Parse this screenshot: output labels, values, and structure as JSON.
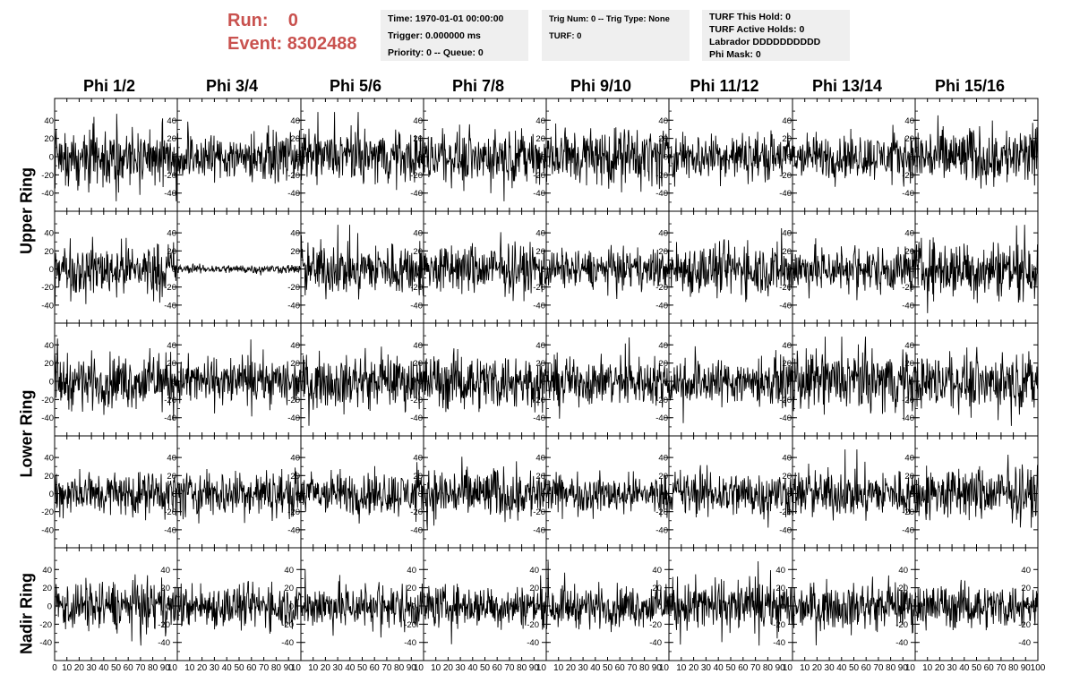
{
  "header": {
    "run_label": "Run:",
    "run_value": "0",
    "event_label": "Event:",
    "event_value": "8302488"
  },
  "info_time": {
    "time": "Time: 1970-01-01 00:00:00",
    "trigger": "Trigger: 0.000000 ms",
    "priority": "Priority: 0 -- Queue: 0"
  },
  "info_trig": {
    "trig": "Trig Num: 0 -- Trig Type: None",
    "turf": "TURF: 0"
  },
  "info_turf": {
    "this_hold": "TURF This Hold: 0",
    "active_holds": "TURF Active Holds: 0",
    "labrador": "Labrador DDDDDDDDDD",
    "phi_mask": "Phi Mask: 0"
  },
  "columns": [
    "Phi 1/2",
    "Phi 3/4",
    "Phi 5/6",
    "Phi 7/8",
    "Phi 9/10",
    "Phi 11/12",
    "Phi 13/14",
    "Phi 15/16"
  ],
  "rings": [
    {
      "label": "Upper Ring",
      "rows": [
        0,
        1
      ]
    },
    {
      "label": "Lower Ring",
      "rows": [
        2,
        3
      ]
    },
    {
      "label": "Nadir Ring",
      "rows": [
        4
      ]
    }
  ],
  "chart_data": {
    "type": "line",
    "grid_rows": 5,
    "grid_cols": 8,
    "xlim": [
      0,
      100
    ],
    "ylim": [
      -55,
      55
    ],
    "x_ticks": [
      0,
      10,
      20,
      30,
      40,
      50,
      60,
      70,
      80,
      90,
      100
    ],
    "x_tick_labels_bottom": [
      "0",
      "10",
      "20",
      "30",
      "40",
      "50",
      "60",
      "70",
      "80",
      "90",
      "10",
      "10",
      "20",
      "30",
      "40",
      "50",
      "60",
      "70",
      "80",
      "90",
      "10",
      "10",
      "20",
      "30",
      "40",
      "50",
      "60",
      "70",
      "80",
      "90",
      "10",
      "10",
      "20",
      "30",
      "40",
      "50",
      "60",
      "70",
      "80",
      "90",
      "10",
      "10",
      "20",
      "30",
      "40",
      "50",
      "60",
      "70",
      "80",
      "90",
      "10",
      "10",
      "20",
      "30",
      "40",
      "50",
      "60",
      "70",
      "80",
      "90",
      "10",
      "10",
      "20",
      "30",
      "40",
      "50",
      "60",
      "70",
      "80",
      "90",
      "10",
      "10",
      "20",
      "30",
      "40",
      "50",
      "60",
      "70",
      "80",
      "90",
      "100"
    ],
    "y_ticks": [
      -40,
      -20,
      0,
      20,
      40
    ],
    "y_tick_labels": [
      "-40",
      "-20",
      "0",
      "20",
      "40"
    ],
    "samples_per_trace": 260,
    "trace_amplitude": [
      [
        20,
        16,
        17,
        17,
        20,
        16,
        15,
        20
      ],
      [
        18,
        3,
        18,
        17,
        13,
        18,
        16,
        20
      ],
      [
        18,
        16,
        17,
        19,
        16,
        16,
        20,
        18
      ],
      [
        15,
        16,
        15,
        18,
        13,
        16,
        16,
        18
      ],
      [
        17,
        15,
        16,
        14,
        14,
        18,
        15,
        15
      ]
    ],
    "trace_color": "#000000",
    "frame_color": "#000000",
    "background": "#ffffff"
  }
}
